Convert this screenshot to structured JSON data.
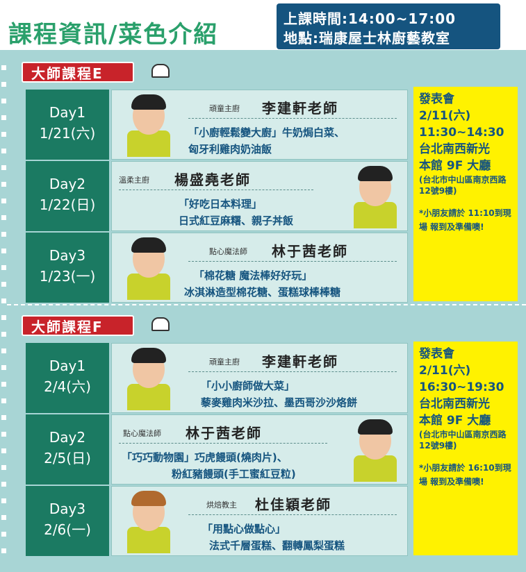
{
  "header": {
    "title": "課程資訊/菜色介紹",
    "time_line": "上課時間:14:00~17:00",
    "location_line": "地點:瑞康屋士林廚藝教室"
  },
  "sections": [
    {
      "tag": "大師課程E",
      "days": [
        {
          "day": "Day1",
          "date": "1/21(六)",
          "role": "頑童主廚",
          "teacher": "李建軒老師",
          "dish1": "「小廚輕鬆變大廚」牛奶焗白菜、",
          "dish2": "匈牙利雞肉奶油飯"
        },
        {
          "day": "Day2",
          "date": "1/22(日)",
          "role": "溫柔主廚",
          "teacher": "楊盛堯老師",
          "dish1": "「好吃日本料理」",
          "dish2": "日式紅豆麻糬、親子丼飯"
        },
        {
          "day": "Day3",
          "date": "1/23(一)",
          "role": "點心魔法師",
          "teacher": "林于茜老師",
          "dish1": "「棉花糖 魔法棒好好玩」",
          "dish2": "冰淇淋造型棉花糖、蛋糕球棒棒糖"
        }
      ],
      "event": {
        "title": "發表會",
        "date": "2/11(六)",
        "time": "11:30~14:30",
        "venue1": "台北南西新光",
        "venue2": "本館 9F 大廳",
        "address": "(台北市中山區南京西路12號9樓)",
        "note": "*小朋友請於 11:10到現場 報到及準備噢!"
      }
    },
    {
      "tag": "大師課程F",
      "days": [
        {
          "day": "Day1",
          "date": "2/4(六)",
          "role": "頑童主廚",
          "teacher": "李建軒老師",
          "dish1": "「小小廚師做大菜」",
          "dish2": "藜麥雞肉米沙拉、墨西哥沙沙烙餅"
        },
        {
          "day": "Day2",
          "date": "2/5(日)",
          "role": "點心魔法師",
          "teacher": "林于茜老師",
          "dish1": "「巧巧動物園」巧虎饅頭(燒肉片)、",
          "dish2": "粉紅豬饅頭(手工蜜紅豆粒)"
        },
        {
          "day": "Day3",
          "date": "2/6(一)",
          "role": "烘焙教主",
          "teacher": "杜佳穎老師",
          "dish1": "「用點心做點心」",
          "dish2": "法式千層蛋糕、翻轉鳳梨蛋糕"
        }
      ],
      "event": {
        "title": "發表會",
        "date": "2/11(六)",
        "time": "16:30~19:30",
        "venue1": "台北南西新光",
        "venue2": "本館 9F 大廳",
        "address": "(台北市中山區南京西路12號9樓)",
        "note": "*小朋友請於 16:10到現場 報到及準備噢!"
      }
    }
  ],
  "colors": {
    "title_green": "#2aa06b",
    "header_navy": "#15547f",
    "board_teal": "#a8d5d5",
    "day_green": "#1b7a62",
    "tag_red": "#c8232a",
    "event_yellow": "#fff200"
  }
}
